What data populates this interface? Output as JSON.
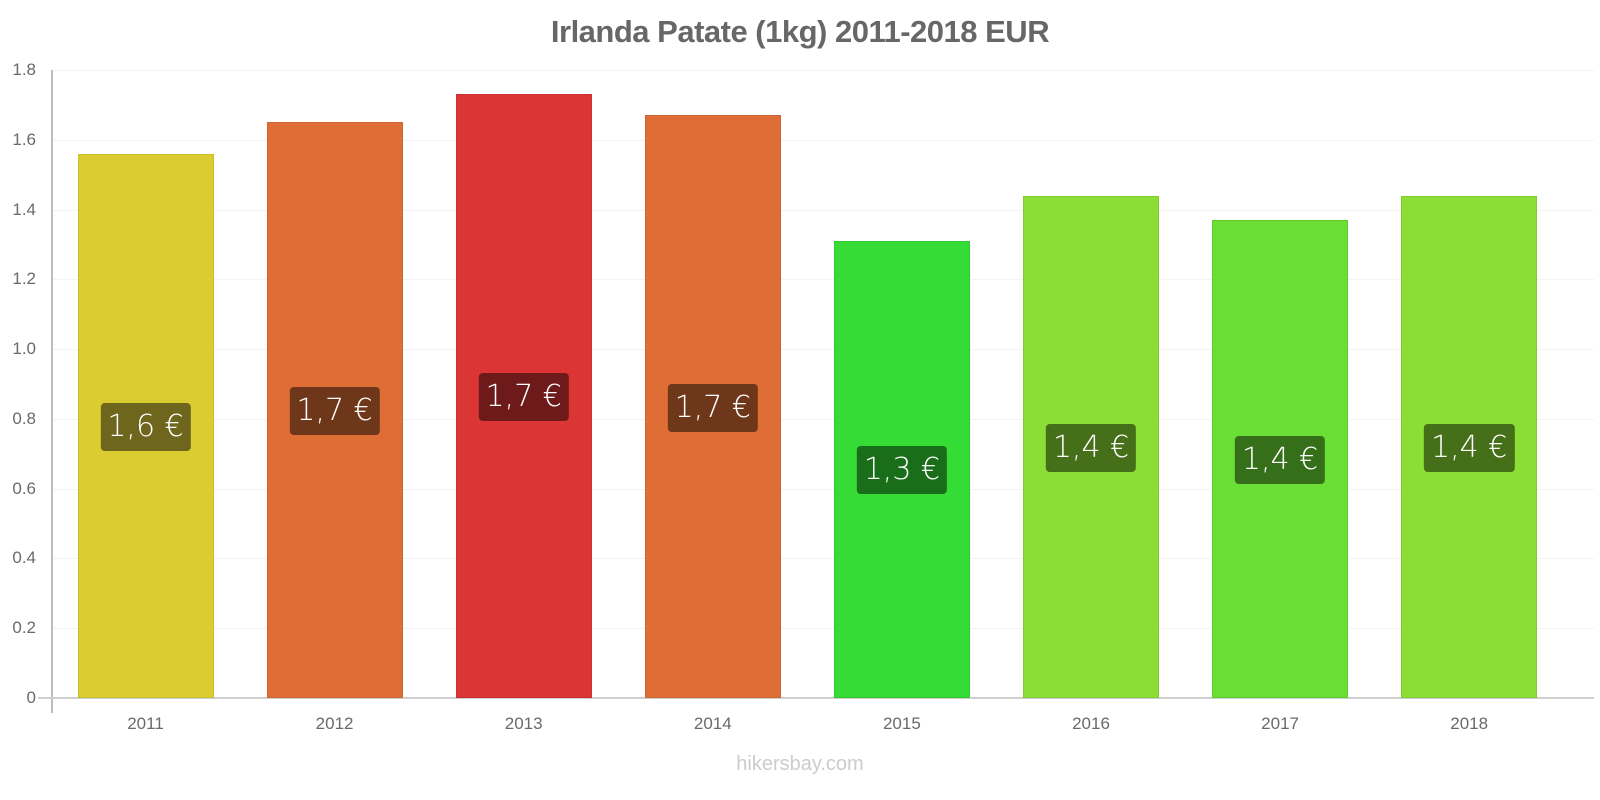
{
  "chart_data": {
    "type": "bar",
    "title": "Irlanda Patate (1kg) 2011-2018 EUR",
    "xlabel": "",
    "ylabel": "",
    "ylim": [
      0,
      1.8
    ],
    "yticks": [
      "0",
      "0.2",
      "0.4",
      "0.6",
      "0.8",
      "1.0",
      "1.2",
      "1.4",
      "1.6",
      "1.8"
    ],
    "grid": true,
    "legend": null,
    "categories": [
      "2011",
      "2012",
      "2013",
      "2014",
      "2015",
      "2016",
      "2017",
      "2018"
    ],
    "values": [
      1.56,
      1.65,
      1.73,
      1.67,
      1.31,
      1.44,
      1.37,
      1.44
    ],
    "value_labels": [
      "1,6 €",
      "1,7 €",
      "1,7 €",
      "1,7 €",
      "1,3 €",
      "1,4 €",
      "1,4 €",
      "1,4 €"
    ],
    "bar_colors": [
      "#dbcc32",
      "#de6e35",
      "#dc3535",
      "#de6e35",
      "#35dc35",
      "#8bde35",
      "#6ade35",
      "#8bde35"
    ],
    "label_colors": [
      "#6e661d",
      "#6f371a",
      "#6e1a1a",
      "#6f371a",
      "#1a6e1a",
      "#466f1a",
      "#356f1a",
      "#466f1a"
    ]
  },
  "watermark": "hikersbay.com"
}
